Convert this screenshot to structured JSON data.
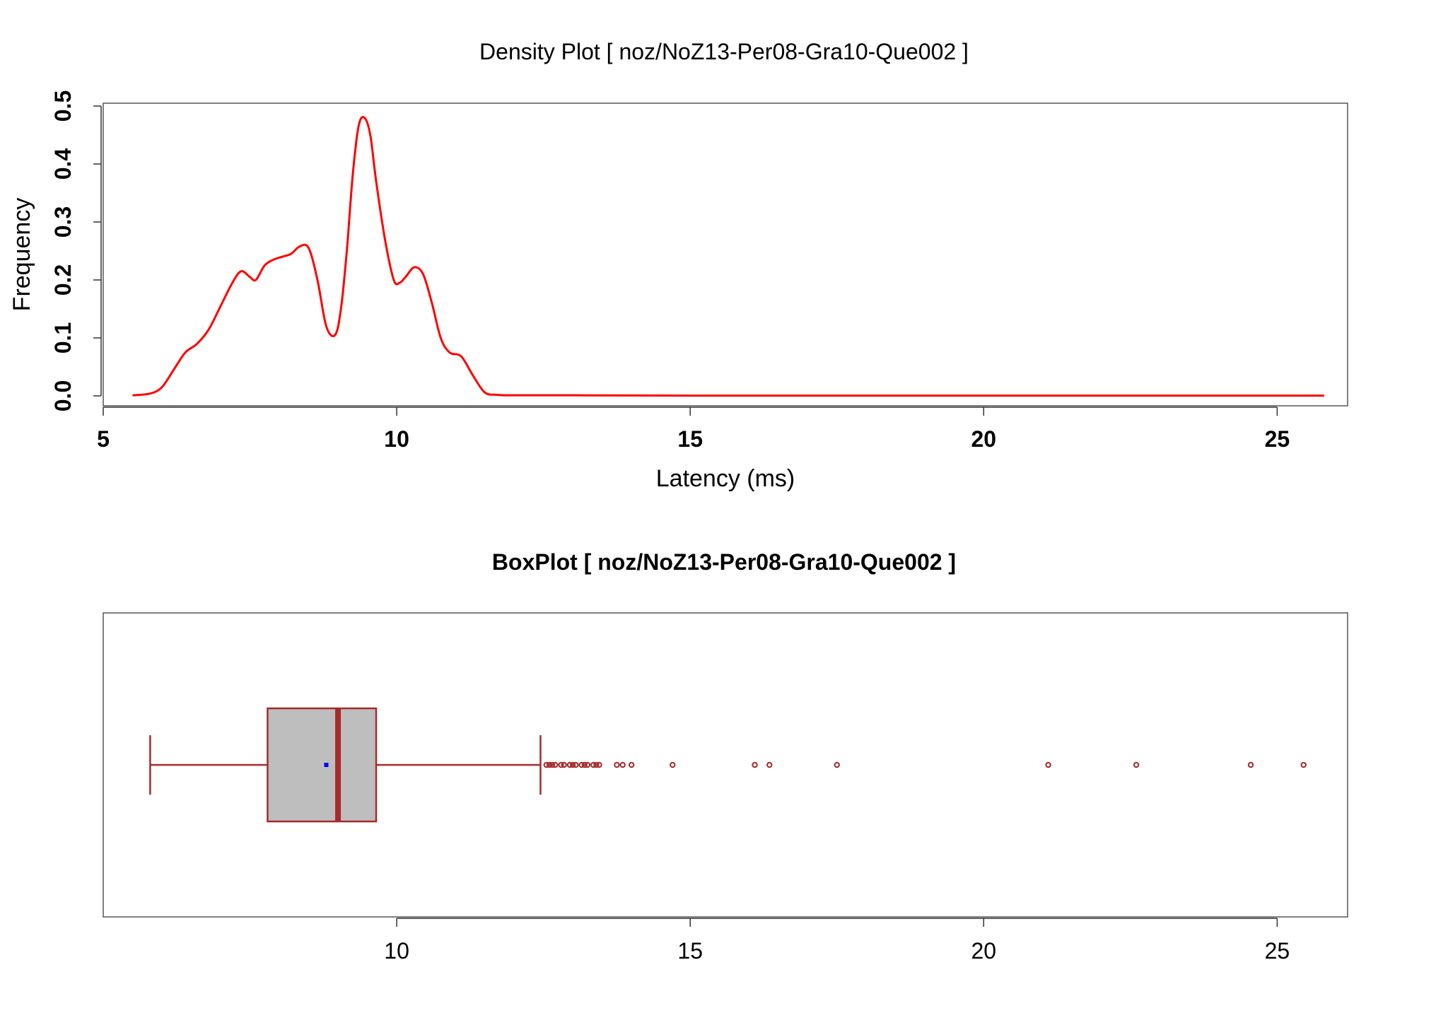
{
  "chart_data": [
    {
      "type": "line",
      "title": "Density Plot [ noz/NoZ13-Per08-Gra10-Que002 ]",
      "xlabel": "Latency (ms)",
      "ylabel": "Frequency",
      "xlim": [
        5,
        26.2
      ],
      "ylim": [
        0,
        0.5
      ],
      "xticks": [
        5,
        10,
        15,
        20,
        25
      ],
      "yticks": [
        0.0,
        0.1,
        0.2,
        0.3,
        0.4,
        0.5
      ],
      "xtick_labels": [
        "5",
        "10",
        "15",
        "20",
        "25"
      ],
      "ytick_labels": [
        "0.0",
        "0.1",
        "0.2",
        "0.3",
        "0.4",
        "0.5"
      ],
      "series": [
        {
          "color": "#ff0000",
          "x": [
            5.5,
            5.8,
            6.0,
            6.2,
            6.4,
            6.6,
            6.8,
            7.0,
            7.2,
            7.35,
            7.5,
            7.6,
            7.75,
            7.9,
            8.05,
            8.2,
            8.35,
            8.5,
            8.65,
            8.8,
            8.95,
            9.05,
            9.15,
            9.25,
            9.35,
            9.45,
            9.55,
            9.65,
            9.8,
            9.95,
            10.05,
            10.15,
            10.3,
            10.45,
            10.6,
            10.75,
            10.9,
            11.1,
            11.3,
            11.5,
            11.7,
            12.0,
            13.0,
            15.0,
            20.0,
            25.0,
            25.8
          ],
          "y": [
            0.001,
            0.004,
            0.015,
            0.045,
            0.075,
            0.09,
            0.115,
            0.155,
            0.195,
            0.215,
            0.205,
            0.2,
            0.225,
            0.235,
            0.24,
            0.245,
            0.258,
            0.255,
            0.2,
            0.12,
            0.105,
            0.15,
            0.25,
            0.38,
            0.465,
            0.48,
            0.45,
            0.37,
            0.27,
            0.2,
            0.195,
            0.205,
            0.222,
            0.21,
            0.16,
            0.1,
            0.075,
            0.068,
            0.035,
            0.006,
            0.002,
            0.001,
            0.001,
            0.0005,
            0.0005,
            0.0005,
            0.0005
          ]
        }
      ]
    },
    {
      "type": "box",
      "title": "BoxPlot [ noz/NoZ13-Per08-Gra10-Que002 ]",
      "xlim": [
        5,
        26.2
      ],
      "xticks": [
        10,
        15,
        20,
        25
      ],
      "xtick_labels": [
        "10",
        "15",
        "20",
        "25"
      ],
      "whisker_low": 5.8,
      "q1": 7.8,
      "median": 9.0,
      "q3": 9.65,
      "whisker_high": 12.45,
      "mean": 8.8,
      "box_fill": "#bebebe",
      "box_stroke": "#a52a2a",
      "mean_color": "#0000ff",
      "outliers": [
        12.55,
        12.6,
        12.65,
        12.7,
        12.8,
        12.85,
        12.95,
        13.0,
        13.05,
        13.15,
        13.2,
        13.25,
        13.35,
        13.4,
        13.45,
        13.75,
        13.85,
        14.0,
        14.7,
        16.1,
        16.35,
        17.5,
        21.1,
        22.6,
        24.55,
        25.45
      ]
    }
  ]
}
